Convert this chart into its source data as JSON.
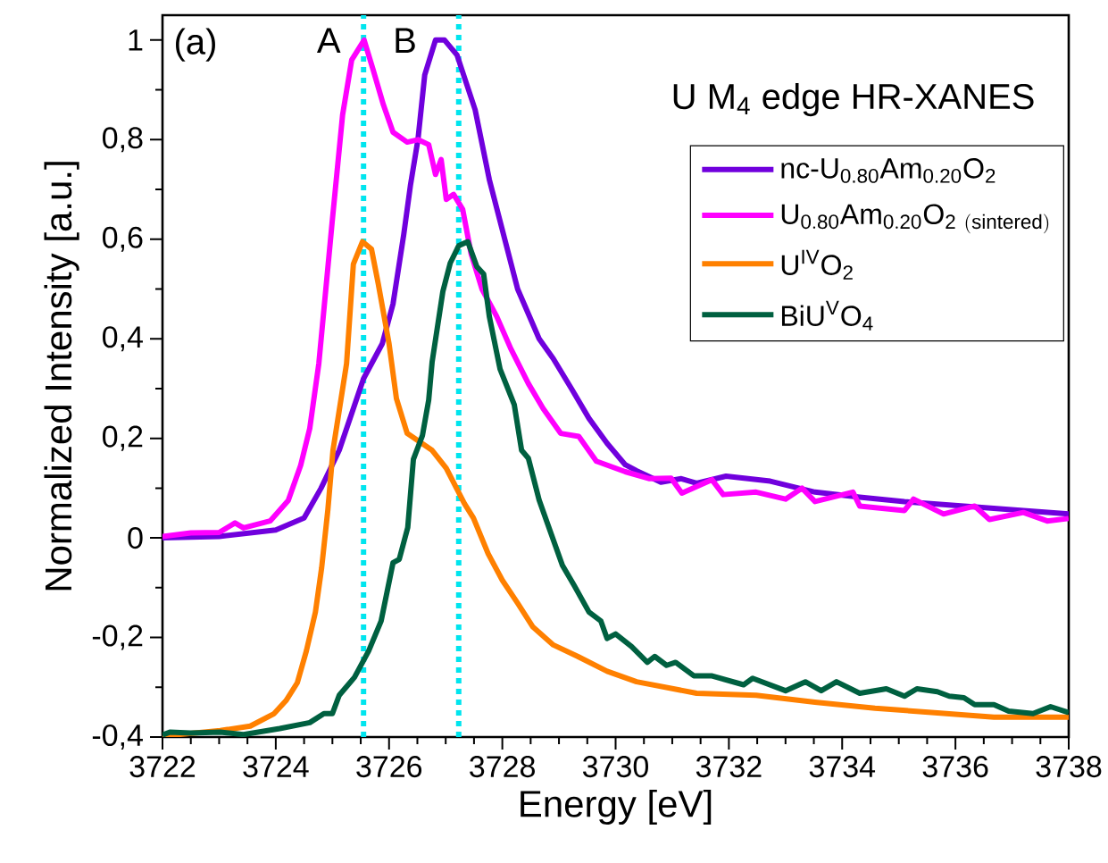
{
  "chart_data": {
    "type": "line",
    "title": "U M$_{4}$ edge HR-XANES",
    "xlabel": "Energy [eV]",
    "ylabel": "Normalized Intensity [a.u.]",
    "xlim": [
      3722,
      3738
    ],
    "xticks": [
      3722,
      3724,
      3726,
      3728,
      3730,
      3732,
      3734,
      3736,
      3738
    ],
    "ylim": [
      -0.4,
      1.05
    ],
    "yticks": [
      {
        "value": -0.4,
        "label": "-0,4"
      },
      {
        "value": -0.2,
        "label": "-0,2"
      },
      0,
      {
        "value": 0.2,
        "label": "0,2"
      },
      {
        "value": 0.4,
        "label": "0,4"
      },
      {
        "value": 0.6,
        "label": "0,6"
      },
      {
        "value": 0.8,
        "label": "0,8"
      },
      1
    ],
    "legend": "top right",
    "grid": false,
    "marker": "none",
    "line_style": "solid",
    "annotations": [
      "(a)",
      "A",
      "B"
    ],
    "ref_lines": [
      {
        "axis": "x",
        "value": 3725.55,
        "color": "#00e5ee",
        "line_style": "dotted"
      },
      {
        "axis": "x",
        "value": 3727.23,
        "color": "#00e5ee",
        "line_style": "dotted"
      }
    ],
    "series": [
      {
        "name": "nc-U$_{0.80}$Am$_{0.20}$O$_{2}$",
        "color": "#7000dd",
        "x": [
          3722,
          3723,
          3724,
          3724.5,
          3724.8,
          3725.12,
          3725.55,
          3725.88,
          3726.07,
          3726.26,
          3726.38,
          3726.51,
          3726.63,
          3726.82,
          3726.98,
          3727.2,
          3727.52,
          3727.77,
          3728.02,
          3728.27,
          3728.65,
          3728.9,
          3729.22,
          3729.53,
          3729.85,
          3730.17,
          3730.37,
          3730.8,
          3731.16,
          3731.43,
          3731.95,
          3732.73,
          3733.52,
          3734.31,
          3735.1,
          3736.15,
          3737.2,
          3738
        ],
        "values": [
          0,
          0.003,
          0.016,
          0.04,
          0.1,
          0.176,
          0.32,
          0.39,
          0.47,
          0.61,
          0.71,
          0.8,
          0.93,
          1.0,
          1.0,
          0.97,
          0.86,
          0.72,
          0.61,
          0.5,
          0.4,
          0.36,
          0.3,
          0.24,
          0.19,
          0.147,
          0.135,
          0.112,
          0.119,
          0.11,
          0.124,
          0.114,
          0.092,
          0.082,
          0.073,
          0.064,
          0.055,
          0.048
        ]
      },
      {
        "name": "\\mathrm{U_{0.80}Am_{0.20}O_{2\\ (sintered)}}",
        "color": "#ff00ff",
        "x": [
          3722,
          3722.5,
          3723.0,
          3723.28,
          3723.43,
          3723.9,
          3724.22,
          3724.44,
          3724.6,
          3724.76,
          3725.0,
          3725.18,
          3725.34,
          3725.56,
          3725.72,
          3725.9,
          3726.07,
          3726.32,
          3726.51,
          3726.7,
          3726.82,
          3726.92,
          3727.01,
          3727.14,
          3727.3,
          3727.45,
          3727.64,
          3727.9,
          3728.15,
          3728.46,
          3728.72,
          3729.03,
          3729.35,
          3729.66,
          3730.17,
          3730.6,
          3730.98,
          3731.17,
          3731.7,
          3731.9,
          3732.48,
          3733.0,
          3733.29,
          3733.52,
          3734.19,
          3734.31,
          3735.1,
          3735.26,
          3735.79,
          3736.34,
          3736.6,
          3737.2,
          3737.62,
          3738
        ],
        "values": [
          0.003,
          0.01,
          0.011,
          0.03,
          0.02,
          0.034,
          0.075,
          0.146,
          0.22,
          0.35,
          0.64,
          0.85,
          0.96,
          1.0,
          0.94,
          0.87,
          0.815,
          0.795,
          0.8,
          0.79,
          0.73,
          0.76,
          0.68,
          0.69,
          0.66,
          0.57,
          0.5,
          0.445,
          0.38,
          0.31,
          0.26,
          0.21,
          0.204,
          0.154,
          0.133,
          0.119,
          0.12,
          0.09,
          0.117,
          0.087,
          0.092,
          0.078,
          0.1,
          0.073,
          0.092,
          0.064,
          0.055,
          0.078,
          0.048,
          0.064,
          0.037,
          0.051,
          0.034,
          0.039
        ]
      },
      {
        "name": "U$^{IV}$O$_{2}$",
        "color": "#ff8000",
        "x": [
          3722,
          3723.02,
          3723.55,
          3723.97,
          3724.18,
          3724.38,
          3724.54,
          3724.7,
          3724.81,
          3724.92,
          3725.01,
          3725.25,
          3725.37,
          3725.53,
          3725.69,
          3725.81,
          3726.0,
          3726.13,
          3726.32,
          3726.76,
          3727.01,
          3727.33,
          3727.49,
          3727.75,
          3728.0,
          3728.27,
          3728.54,
          3728.9,
          3729.33,
          3729.85,
          3730.37,
          3731.43,
          3732.48,
          3733.52,
          3734.58,
          3735.63,
          3736.68,
          3738
        ],
        "values": [
          -0.398,
          -0.387,
          -0.378,
          -0.353,
          -0.327,
          -0.291,
          -0.227,
          -0.149,
          -0.06,
          0.057,
          0.176,
          0.35,
          0.55,
          0.595,
          0.58,
          0.51,
          0.39,
          0.28,
          0.21,
          0.176,
          0.14,
          0.069,
          0.04,
          -0.032,
          -0.085,
          -0.131,
          -0.179,
          -0.215,
          -0.238,
          -0.268,
          -0.289,
          -0.312,
          -0.316,
          -0.33,
          -0.342,
          -0.351,
          -0.36,
          -0.36
        ]
      },
      {
        "name": "BiU$^{V}$O$_{4}$",
        "color": "#006040",
        "x": [
          3722,
          3722.13,
          3722.5,
          3723.02,
          3723.43,
          3724.07,
          3724.6,
          3724.85,
          3725.0,
          3725.12,
          3725.39,
          3725.64,
          3725.86,
          3726.07,
          3726.18,
          3726.33,
          3726.43,
          3726.59,
          3726.7,
          3726.76,
          3726.95,
          3727.08,
          3727.23,
          3727.39,
          3727.55,
          3727.67,
          3727.77,
          3727.96,
          3728.21,
          3728.34,
          3728.46,
          3728.65,
          3728.8,
          3729.06,
          3729.27,
          3729.53,
          3729.74,
          3729.85,
          3730.0,
          3730.28,
          3730.56,
          3730.69,
          3730.9,
          3731.06,
          3731.38,
          3731.69,
          3732.26,
          3732.42,
          3733.0,
          3733.35,
          3733.63,
          3733.9,
          3734.31,
          3734.78,
          3735.1,
          3735.32,
          3735.68,
          3735.89,
          3736.15,
          3736.34,
          3736.68,
          3736.94,
          3737.37,
          3737.68,
          3738
        ],
        "values": [
          -0.396,
          -0.39,
          -0.392,
          -0.39,
          -0.395,
          -0.383,
          -0.371,
          -0.353,
          -0.353,
          -0.316,
          -0.28,
          -0.227,
          -0.167,
          -0.05,
          -0.043,
          0.021,
          0.158,
          0.206,
          0.277,
          0.353,
          0.495,
          0.552,
          0.587,
          0.595,
          0.545,
          0.53,
          0.445,
          0.339,
          0.268,
          0.176,
          0.16,
          0.076,
          0.028,
          -0.055,
          -0.096,
          -0.149,
          -0.167,
          -0.202,
          -0.193,
          -0.218,
          -0.25,
          -0.238,
          -0.256,
          -0.25,
          -0.277,
          -0.277,
          -0.295,
          -0.282,
          -0.307,
          -0.289,
          -0.307,
          -0.289,
          -0.312,
          -0.303,
          -0.318,
          -0.303,
          -0.309,
          -0.318,
          -0.321,
          -0.335,
          -0.335,
          -0.348,
          -0.353,
          -0.339,
          -0.351
        ]
      }
    ]
  }
}
